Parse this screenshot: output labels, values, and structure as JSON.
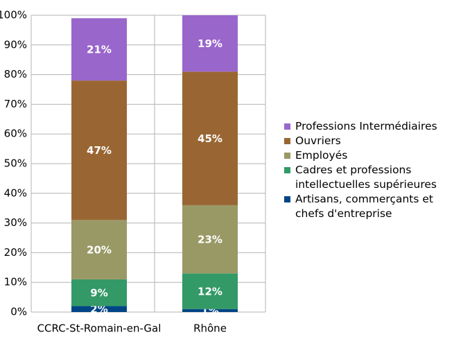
{
  "chart_data": {
    "type": "stacked-bar",
    "categories": [
      "CCRC-St-Romain-en-Gal",
      "Rhône"
    ],
    "series": [
      {
        "name": "Artisans, commerçants et chefs d'entreprise",
        "color": "#004586",
        "values": [
          2,
          1
        ],
        "value_labels": [
          "2%",
          "1%"
        ]
      },
      {
        "name": "Cadres et professions intellectuelles supérieures",
        "color": "#339966",
        "values": [
          9,
          12
        ],
        "value_labels": [
          "9%",
          "12%"
        ]
      },
      {
        "name": "Employés",
        "color": "#999966",
        "values": [
          20,
          23
        ],
        "value_labels": [
          "20%",
          "23%"
        ]
      },
      {
        "name": "Ouvriers",
        "color": "#996633",
        "values": [
          47,
          45
        ],
        "value_labels": [
          "47%",
          "45%"
        ]
      },
      {
        "name": "Professions Intermédiaires",
        "color": "#9966cc",
        "values": [
          21,
          19
        ],
        "value_labels": [
          "21%",
          "19%"
        ]
      }
    ],
    "ylim": [
      0,
      100
    ],
    "yticks": [
      {
        "value": 0,
        "label": "0%"
      },
      {
        "value": 10,
        "label": "10%"
      },
      {
        "value": 20,
        "label": "20%"
      },
      {
        "value": 30,
        "label": "30%"
      },
      {
        "value": 40,
        "label": "40%"
      },
      {
        "value": 50,
        "label": "50%"
      },
      {
        "value": 60,
        "label": "60%"
      },
      {
        "value": 70,
        "label": "70%"
      },
      {
        "value": 80,
        "label": "80%"
      },
      {
        "value": 90,
        "label": "90%"
      },
      {
        "value": 100,
        "label": "100%"
      }
    ],
    "grid": true
  }
}
